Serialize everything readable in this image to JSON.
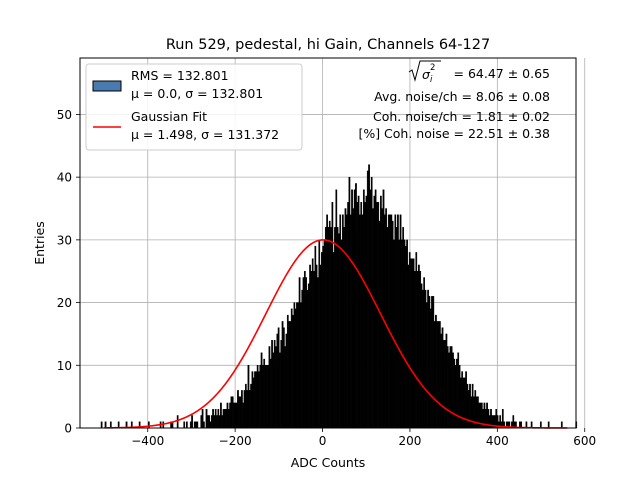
{
  "chart_data": {
    "type": "bar",
    "title": "Run 529, pedestal, hi Gain, Channels 64-127",
    "xlabel": "ADC Counts",
    "ylabel": "Entries",
    "xlim": [
      -555,
      580
    ],
    "ylim": [
      0,
      59
    ],
    "xticks": [
      -400,
      -200,
      0,
      200,
      400,
      600
    ],
    "xtick_labels": [
      "−400",
      "−200",
      "0",
      "200",
      "400",
      "600"
    ],
    "yticks": [
      0,
      10,
      20,
      30,
      40,
      50
    ],
    "ytick_labels": [
      "0",
      "10",
      "20",
      "30",
      "40",
      "50"
    ],
    "grid": true,
    "histogram": {
      "name": "RMS = 132.801",
      "stats": "μ = 0.0, σ = 132.801",
      "x_start": -507,
      "bin_width": 3,
      "color": "#000000",
      "legend_color": "#4a7bb0",
      "counts": [
        1,
        0,
        0,
        1,
        0,
        0,
        0,
        1,
        0,
        0,
        0,
        0,
        0,
        1,
        0,
        0,
        0,
        0,
        0,
        1,
        0,
        0,
        0,
        1,
        0,
        0,
        0,
        0,
        0,
        1,
        0,
        0,
        0,
        0,
        0,
        0,
        1,
        0,
        0,
        0,
        0,
        0,
        0,
        0,
        0,
        1,
        0,
        1,
        0,
        0,
        0,
        0,
        0,
        1,
        1,
        0,
        0,
        0,
        2,
        0,
        0,
        0,
        0,
        1,
        0,
        1,
        0,
        0,
        1,
        2,
        0,
        1,
        1,
        1,
        0,
        0,
        2,
        3,
        1,
        0,
        3,
        2,
        2,
        1,
        2,
        3,
        2,
        3,
        2,
        3,
        2,
        4,
        2,
        3,
        3,
        3,
        4,
        3,
        4,
        5,
        5,
        4,
        4,
        4,
        6,
        5,
        5,
        6,
        4,
        6,
        7,
        6,
        10,
        6,
        7,
        9,
        8,
        9,
        9,
        10,
        9,
        10,
        12,
        10,
        11,
        10,
        10,
        10,
        13,
        11,
        14,
        12,
        14,
        13,
        15,
        16,
        12,
        14,
        17,
        16,
        13,
        15,
        18,
        17,
        17,
        19,
        18,
        20,
        19,
        20,
        20,
        24,
        20,
        22,
        24,
        25,
        24,
        22,
        23,
        26,
        25,
        27,
        25,
        29,
        26,
        24,
        30,
        26,
        28,
        29,
        30,
        32,
        34,
        32,
        33,
        32,
        36,
        28,
        32,
        38,
        32,
        31,
        34,
        30,
        34,
        32,
        35,
        34,
        36,
        40,
        34,
        38,
        35,
        38,
        39,
        36,
        37,
        34,
        36,
        34,
        38,
        36,
        37,
        41,
        42,
        38,
        40,
        35,
        37,
        38,
        36,
        36,
        33,
        37,
        35,
        38,
        34,
        35,
        32,
        34,
        34,
        34,
        33,
        30,
        34,
        32,
        34,
        30,
        34,
        30,
        32,
        30,
        29,
        30,
        26,
        28,
        27,
        27,
        27,
        25,
        28,
        25,
        26,
        25,
        23,
        22,
        24,
        22,
        20,
        22,
        21,
        19,
        21,
        21,
        17,
        18,
        17,
        17,
        17,
        15,
        16,
        14,
        14,
        15,
        13,
        12,
        13,
        13,
        12,
        11,
        10,
        11,
        12,
        10,
        8,
        9,
        8,
        8,
        9,
        7,
        6,
        7,
        5,
        7,
        5,
        6,
        5,
        5,
        4,
        4,
        4,
        3,
        4,
        3,
        4,
        3,
        2,
        3,
        2,
        2,
        2,
        3,
        2,
        1,
        2,
        1,
        3,
        1,
        0,
        1,
        1,
        1,
        0,
        1,
        2,
        1,
        1,
        0,
        0,
        1,
        1,
        0,
        0,
        0,
        1,
        0,
        0,
        0,
        1,
        0,
        0,
        0,
        0,
        0,
        0,
        1,
        0,
        0,
        0,
        0,
        0,
        1,
        0,
        0,
        0,
        0,
        0,
        0,
        0,
        0,
        0,
        1,
        0,
        0,
        0,
        0,
        0,
        0,
        0,
        0,
        0,
        0,
        1
      ]
    },
    "series": [
      {
        "name": "Gaussian Fit",
        "stats": "μ = 1.498, σ = 131.372",
        "type": "line",
        "function": "gaussian",
        "mu": 1.498,
        "sigma": 131.372,
        "amplitude": 30,
        "x_range": [
          -500,
          560
        ],
        "color": "#ff0000"
      }
    ],
    "annotations": {
      "sigma_i_value": "= 64.47 ± 0.65",
      "avg_noise": "Avg. noise/ch = 8.06 ± 0.08",
      "coh_noise": "Coh. noise/ch = 1.81 ± 0.02",
      "pct_coh_noise": "[%] Coh. noise = 22.51 ± 0.38"
    }
  }
}
